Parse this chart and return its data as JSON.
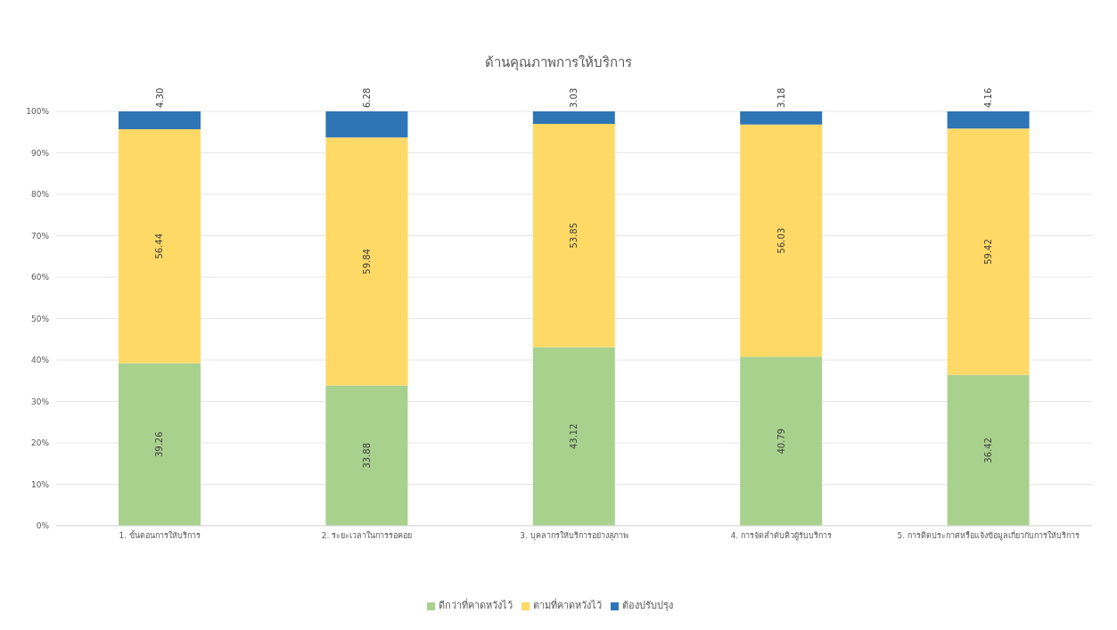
{
  "chart_data": {
    "type": "bar",
    "title": "ด้านคุณภาพการให้บริการ",
    "stacked": true,
    "categories": [
      "1. ขั้นตอนการให้บริการ",
      "2. ระยะเวลาในการรอคอย",
      "3. บุคลากรให้บริการอย่างสุภาพ",
      "4. การจัดลำดับคิวผู้รับบริการ",
      "5. การติดประกาศหรือแจ้งข้อมูลเกี่ยวกับการให้บริการ"
    ],
    "series": [
      {
        "name": "ดีกว่าที่คาดหวังไว้",
        "color": "#a9d18e",
        "values": [
          39.26,
          33.88,
          43.12,
          40.79,
          36.42
        ],
        "value_labels": [
          "39.26",
          "33.88",
          "43.12",
          "40.79",
          "36.42"
        ]
      },
      {
        "name": "ตามที่คาดหวังไว้",
        "color": "#ffd966",
        "values": [
          56.44,
          59.84,
          53.85,
          56.03,
          59.42
        ],
        "value_labels": [
          "56.44",
          "59.84",
          "53.85",
          "56.03",
          "59.42"
        ]
      },
      {
        "name": "ต้องปรับปรุง",
        "color": "#2e75b6",
        "values": [
          4.3,
          6.28,
          3.03,
          3.18,
          4.16
        ],
        "value_labels": [
          "4.30",
          "6.28",
          "3.03",
          "3.18",
          "4.16"
        ]
      }
    ],
    "ylim": [
      0,
      100
    ],
    "yticks": [
      {
        "value": 0,
        "label": "0%"
      },
      {
        "value": 10,
        "label": "10%"
      },
      {
        "value": 20,
        "label": "20%"
      },
      {
        "value": 30,
        "label": "30%"
      },
      {
        "value": 40,
        "label": "40%"
      },
      {
        "value": 50,
        "label": "50%"
      },
      {
        "value": 60,
        "label": "60%"
      },
      {
        "value": 70,
        "label": "70%"
      },
      {
        "value": 80,
        "label": "80%"
      },
      {
        "value": 90,
        "label": "90%"
      },
      {
        "value": 100,
        "label": "100%"
      }
    ],
    "grid": "y",
    "legend": "bottom"
  }
}
